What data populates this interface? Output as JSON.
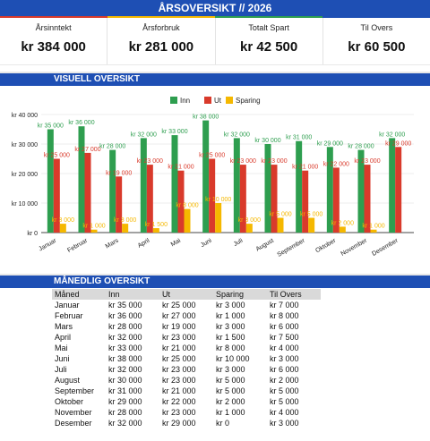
{
  "header": {
    "title": "ÅRSOVERSIKT // 2026"
  },
  "kpis": [
    {
      "label": "Årsinntekt",
      "value": "kr 384 000"
    },
    {
      "label": "Årsforbruk",
      "value": "kr 281 000"
    },
    {
      "label": "Totalt Spart",
      "value": "kr 42 500"
    },
    {
      "label": "Til Overs",
      "value": "kr 60 500"
    }
  ],
  "visual_section": {
    "title": "VISUELL OVERSIKT"
  },
  "monthly_section": {
    "title": "MÅNEDLIG OVERSIKT"
  },
  "colors": {
    "header_blue": "#1e4fb4",
    "inn": "#2e9e4f",
    "ut": "#d93a2b",
    "sparing": "#f5b800",
    "stripe_red": "#d93a2b",
    "stripe_yellow": "#f5b800",
    "stripe_green": "#2e9e4f",
    "stripe_blue": "#1e4fb4"
  },
  "chart_data": {
    "type": "bar",
    "categories": [
      "Januar",
      "Februar",
      "Mars",
      "April",
      "Mai",
      "Juni",
      "Juli",
      "August",
      "September",
      "Oktober",
      "November",
      "Desember"
    ],
    "series": [
      {
        "name": "Inn",
        "values": [
          35000,
          36000,
          28000,
          32000,
          33000,
          38000,
          32000,
          30000,
          31000,
          29000,
          28000,
          32000
        ],
        "labels": [
          "kr 35 000",
          "kr 36 000",
          "kr 28 000",
          "kr 32 000",
          "kr 33 000",
          "kr 38 000",
          "kr 32 000",
          "kr 30 000",
          "kr 31 000",
          "kr 29 000",
          "kr 28 000",
          "kr 32 000"
        ]
      },
      {
        "name": "Ut",
        "values": [
          25000,
          27000,
          19000,
          23000,
          21000,
          25000,
          23000,
          23000,
          21000,
          22000,
          23000,
          29000
        ],
        "labels": [
          "kr 25 000",
          "kr 27 000",
          "kr 19 000",
          "kr 23 000",
          "kr 21 000",
          "kr 25 000",
          "kr 23 000",
          "kr 23 000",
          "kr 21 000",
          "kr 22 000",
          "kr 23 000",
          "kr 29 000"
        ]
      },
      {
        "name": "Sparing",
        "values": [
          3000,
          1000,
          3000,
          1500,
          8000,
          10000,
          3000,
          5000,
          5000,
          2000,
          1000,
          0
        ],
        "labels": [
          "kr 3 000",
          "kr 1 000",
          "kr 3 000",
          "kr 1 500",
          "kr 8 000",
          "kr 10 000",
          "kr 3 000",
          "kr 5 000",
          "kr 5 000",
          "kr 2 000",
          "kr 1 000",
          ""
        ]
      }
    ],
    "yticks": [
      "kr 0",
      "kr 10 000",
      "kr 20 000",
      "kr 30 000",
      "kr 40 000"
    ],
    "ylim": [
      0,
      40000
    ],
    "legend": "top",
    "grid": true
  },
  "table": {
    "headers": [
      "Måned",
      "Inn",
      "Ut",
      "Sparing",
      "Til Overs"
    ],
    "rows": [
      [
        "Januar",
        "kr 35 000",
        "kr 25 000",
        "kr 3 000",
        "kr 7 000"
      ],
      [
        "Februar",
        "kr 36 000",
        "kr 27 000",
        "kr 1 000",
        "kr 8 000"
      ],
      [
        "Mars",
        "kr 28 000",
        "kr 19 000",
        "kr 3 000",
        "kr 6 000"
      ],
      [
        "April",
        "kr 32 000",
        "kr 23 000",
        "kr 1 500",
        "kr 7 500"
      ],
      [
        "Mai",
        "kr 33 000",
        "kr 21 000",
        "kr 8 000",
        "kr 4 000"
      ],
      [
        "Juni",
        "kr 38 000",
        "kr 25 000",
        "kr 10 000",
        "kr 3 000"
      ],
      [
        "Juli",
        "kr 32 000",
        "kr 23 000",
        "kr 3 000",
        "kr 6 000"
      ],
      [
        "August",
        "kr 30 000",
        "kr 23 000",
        "kr 5 000",
        "kr 2 000"
      ],
      [
        "September",
        "kr 31 000",
        "kr 21 000",
        "kr 5 000",
        "kr 5 000"
      ],
      [
        "Oktober",
        "kr 29 000",
        "kr 22 000",
        "kr 2 000",
        "kr 5 000"
      ],
      [
        "November",
        "kr 28 000",
        "kr 23 000",
        "kr 1 000",
        "kr 4 000"
      ],
      [
        "Desember",
        "kr 32 000",
        "kr 29 000",
        "kr 0",
        "kr 3 000"
      ]
    ]
  }
}
